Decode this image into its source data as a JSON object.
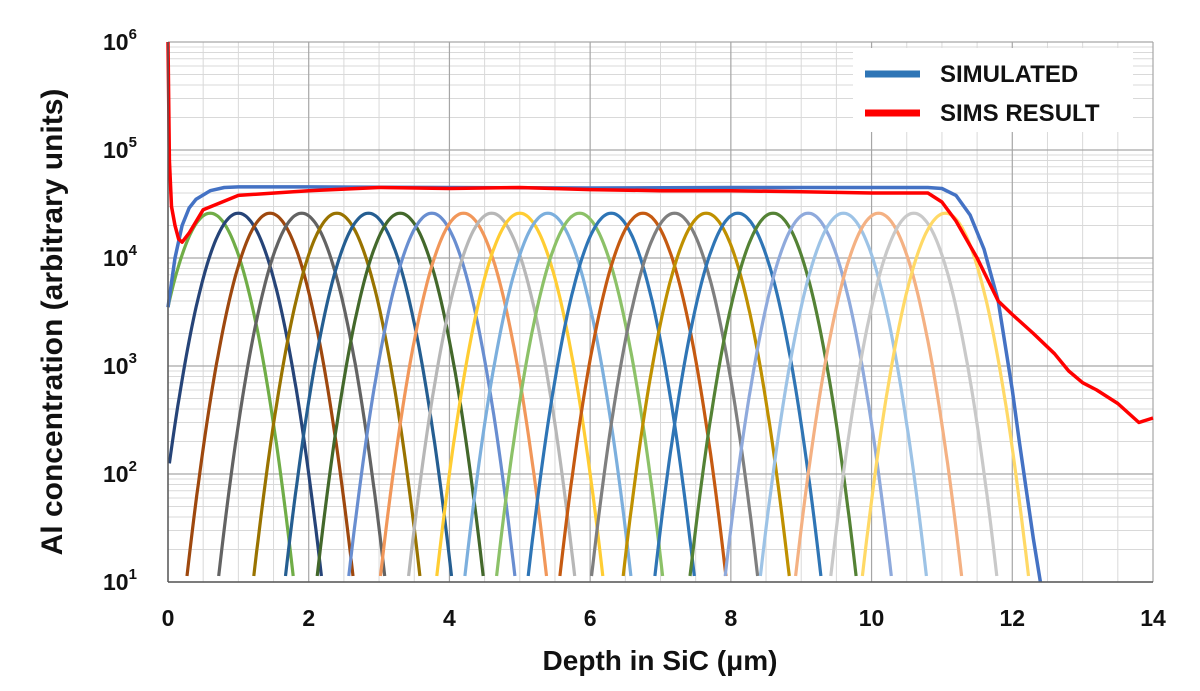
{
  "chart_data": {
    "type": "line",
    "title": "",
    "xlabel": "Depth in SiC (μm)",
    "ylabel": "Al concentration (arbitrary units)",
    "xlim": [
      0,
      14
    ],
    "ylim": [
      10,
      1000000
    ],
    "y_scale": "log",
    "x_ticks": [
      "0",
      "2",
      "4",
      "6",
      "8",
      "10",
      "12",
      "14"
    ],
    "y_ticks": [
      {
        "base": "10",
        "exp": "1"
      },
      {
        "base": "10",
        "exp": "2"
      },
      {
        "base": "10",
        "exp": "3"
      },
      {
        "base": "10",
        "exp": "4"
      },
      {
        "base": "10",
        "exp": "5"
      },
      {
        "base": "10",
        "exp": "6"
      }
    ],
    "grid": true,
    "legend_position": "top-right",
    "series": [
      {
        "name": "SIMULATED",
        "color": "#4472c4",
        "x": [
          0,
          0.1,
          0.2,
          0.3,
          0.4,
          0.6,
          0.8,
          1.0,
          2,
          4,
          6,
          8,
          10,
          10.8,
          11.0,
          11.2,
          11.4,
          11.6,
          11.8,
          12.0,
          12.1,
          12.2,
          12.3,
          12.4
        ],
        "y": [
          3500,
          10000,
          20000,
          29000,
          35000,
          42000,
          45000,
          45500,
          45500,
          45000,
          44500,
          45000,
          45000,
          45000,
          44000,
          38000,
          25000,
          12000,
          4000,
          600,
          200,
          70,
          25,
          10
        ]
      },
      {
        "name": "SIMS RESULT",
        "color": "#ff0000",
        "x": [
          0,
          0.02,
          0.05,
          0.1,
          0.15,
          0.2,
          0.3,
          0.5,
          1.0,
          2,
          3,
          4,
          5,
          6,
          7,
          8,
          9,
          10,
          10.8,
          11.0,
          11.2,
          11.5,
          11.8,
          12.0,
          12.3,
          12.6,
          12.8,
          13.0,
          13.2,
          13.5,
          13.8,
          14.0
        ],
        "y": [
          1000000,
          80000,
          30000,
          20000,
          15000,
          14000,
          17000,
          28000,
          38000,
          42000,
          45000,
          44000,
          45000,
          43000,
          42000,
          42000,
          41000,
          40000,
          40000,
          33000,
          22000,
          10000,
          4000,
          3000,
          2000,
          1300,
          900,
          700,
          600,
          450,
          300,
          330
        ]
      }
    ],
    "implant_peaks": {
      "peak_value": 26000,
      "width_um": 0.3,
      "positions": [
        0.6,
        1.0,
        1.45,
        1.9,
        2.4,
        2.85,
        3.3,
        3.75,
        4.2,
        4.6,
        5.0,
        5.4,
        5.85,
        6.3,
        6.75,
        7.2,
        7.65,
        8.1,
        8.6,
        9.1,
        9.6,
        10.1,
        10.6,
        11.05
      ],
      "colors": [
        "#70ad47",
        "#264478",
        "#9e480e",
        "#636363",
        "#997300",
        "#255e91",
        "#43682b",
        "#698ed0",
        "#f1975a",
        "#b7b7b7",
        "#ffcd33",
        "#7cafdd",
        "#8cc168",
        "#2e75b6",
        "#c55a11",
        "#7f7f7f",
        "#bf9000",
        "#2f75b5",
        "#548235",
        "#8faadc",
        "#9dc3e6",
        "#f4b183",
        "#c9c9c9",
        "#ffd966"
      ]
    }
  },
  "legend": {
    "items": [
      {
        "label": "SIMULATED",
        "color": "#2e75b6"
      },
      {
        "label": "SIMS RESULT",
        "color": "#ff0000"
      }
    ]
  }
}
